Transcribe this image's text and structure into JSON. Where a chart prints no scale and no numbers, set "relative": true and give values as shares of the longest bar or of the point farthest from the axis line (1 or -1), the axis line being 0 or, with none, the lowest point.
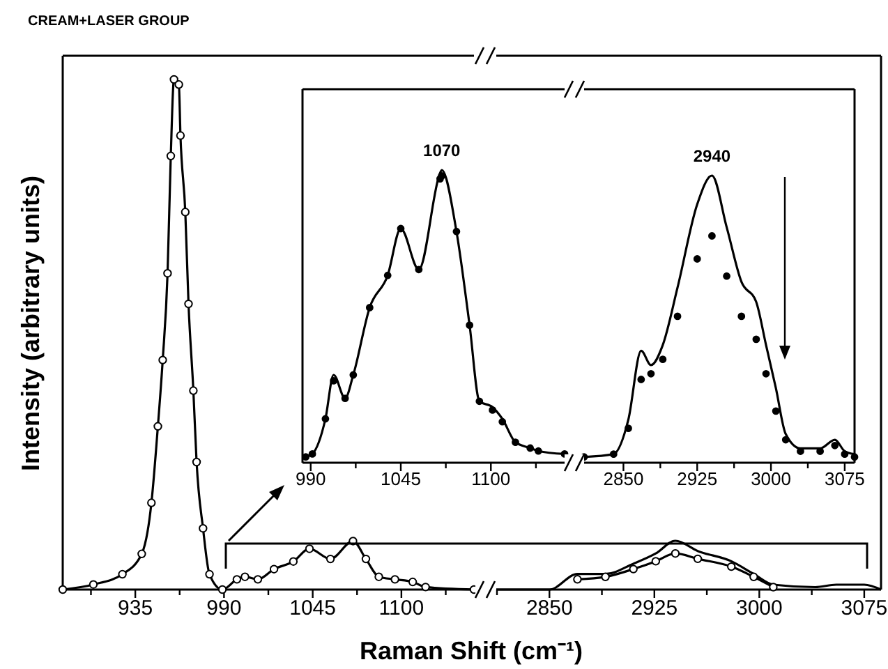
{
  "chart_data": [
    {
      "type": "line",
      "title": "CREAM+LASER GROUP",
      "ylabel": "Intensity (arbitrary units)",
      "xlabel": "Raman Shift (cm⁻¹)",
      "relative": true,
      "xlim": [
        890,
        1145
      ],
      "xticks": [
        {
          "value": 907.5,
          "label": null
        },
        935,
        {
          "value": 962.5,
          "label": null
        },
        990,
        {
          "value": 1017.5,
          "label": null
        },
        1045,
        {
          "value": 1072.5,
          "label": null
        },
        1100,
        {
          "value": 1127.5,
          "label": null
        }
      ],
      "x": [
        890,
        909,
        927,
        939,
        945,
        949,
        952,
        955,
        957,
        959,
        962,
        963,
        966,
        968,
        971,
        973,
        977,
        981,
        989,
        998,
        1003,
        1011,
        1021,
        1033,
        1043,
        1056,
        1070,
        1078,
        1086,
        1096,
        1107,
        1115,
        1145
      ],
      "series": [
        {
          "color": "#000000",
          "marker": "circle",
          "values": [
            0,
            0.01,
            0.03,
            0.07,
            0.17,
            0.32,
            0.45,
            0.62,
            0.85,
            1,
            0.99,
            0.89,
            0.74,
            0.56,
            0.39,
            0.25,
            0.12,
            0.03,
            0,
            0.02,
            0.025,
            0.02,
            0.04,
            0.055,
            0.08,
            0.06,
            0.095,
            0.06,
            0.025,
            0.02,
            0.015,
            0.005,
            0
          ]
        }
      ]
    },
    {
      "type": "line",
      "relative": true,
      "xlim": [
        2812,
        3087
      ],
      "xticks": [
        {
          "value": 2812.5,
          "label": null
        },
        2850,
        {
          "value": 2887.5,
          "label": null
        },
        2925,
        {
          "value": 2962.5,
          "label": null
        },
        3000,
        {
          "value": 3037.5,
          "label": null
        },
        3075
      ],
      "x": [
        2812,
        2850,
        2870,
        2890,
        2910,
        2926,
        2940,
        2956,
        2980,
        2996,
        3010,
        3040,
        3055,
        3075,
        3087
      ],
      "series": [
        {
          "color": "#000000",
          "values": [
            0,
            0,
            0.32,
            0.32,
            0.53,
            0.74,
            1,
            0.79,
            0.58,
            0.32,
            0.1,
            0.05,
            0.1,
            0.1,
            0
          ]
        },
        {
          "color": "#000000",
          "marker": "circle",
          "x": [
            2870,
            2890,
            2910,
            2926,
            2940,
            2956,
            2980,
            2996,
            3010
          ],
          "values": [
            0.21,
            0.26,
            0.42,
            0.58,
            0.74,
            0.63,
            0.47,
            0.26,
            0.05
          ]
        }
      ]
    },
    {
      "type": "line",
      "relative": true,
      "xlim": [
        985,
        1145
      ],
      "xticks": [
        990,
        {
          "value": 1017.5,
          "label": null
        },
        1045,
        {
          "value": 1072.5,
          "label": null
        },
        1100,
        {
          "value": 1127.5,
          "label": null
        }
      ],
      "annotations": [
        {
          "text": "1070",
          "x": 1070,
          "y": 1
        }
      ],
      "x": [
        987,
        991,
        999,
        1004,
        1011,
        1016,
        1026,
        1037,
        1045,
        1056,
        1069,
        1070,
        1079,
        1087,
        1093,
        1101,
        1107,
        1115,
        1124,
        1129,
        1145
      ],
      "series": [
        {
          "color": "#000000",
          "values": [
            0.02,
            0.03,
            0.15,
            0.3,
            0.22,
            0.3,
            0.53,
            0.64,
            0.8,
            0.66,
            0.99,
            1,
            0.79,
            0.47,
            0.21,
            0.19,
            0.15,
            0.07,
            0.05,
            0.04,
            0.03
          ]
        },
        {
          "color": "#000000",
          "type": "scatter",
          "marker": "circle",
          "values": [
            0.02,
            0.03,
            0.15,
            0.28,
            0.22,
            0.3,
            0.53,
            0.64,
            0.8,
            0.66,
            0.97,
            0.98,
            0.79,
            0.47,
            0.21,
            0.18,
            0.14,
            0.07,
            0.05,
            0.04,
            0.03
          ]
        }
      ]
    },
    {
      "type": "line",
      "relative": true,
      "xlim": [
        2810,
        3085
      ],
      "xticks": [
        2850,
        {
          "value": 2887.5,
          "label": null
        },
        2925,
        {
          "value": 2962.5,
          "label": null
        },
        3000,
        {
          "value": 3037.5,
          "label": null
        },
        3075
      ],
      "annotations": [
        {
          "text": "2940",
          "x": 2940,
          "y": 1
        }
      ],
      "x": [
        2810,
        2840,
        2855,
        2868,
        2878,
        2890,
        2905,
        2925,
        2940,
        2955,
        2970,
        2985,
        2995,
        3005,
        3015,
        3030,
        3050,
        3065,
        3075,
        3085
      ],
      "series": [
        {
          "color": "#000000",
          "values": [
            0.02,
            0.03,
            0.15,
            0.39,
            0.34,
            0.41,
            0.61,
            0.9,
            1,
            0.82,
            0.63,
            0.56,
            0.41,
            0.26,
            0.1,
            0.05,
            0.05,
            0.08,
            0.04,
            0.03
          ]
        },
        {
          "color": "#000000",
          "type": "scatter",
          "marker": "circle",
          "values": [
            0.02,
            0.03,
            0.12,
            0.29,
            0.31,
            0.36,
            0.51,
            0.71,
            0.79,
            0.65,
            0.51,
            0.43,
            0.31,
            0.18,
            0.08,
            0.04,
            0.04,
            0.06,
            0.03,
            0.02
          ]
        }
      ]
    }
  ]
}
